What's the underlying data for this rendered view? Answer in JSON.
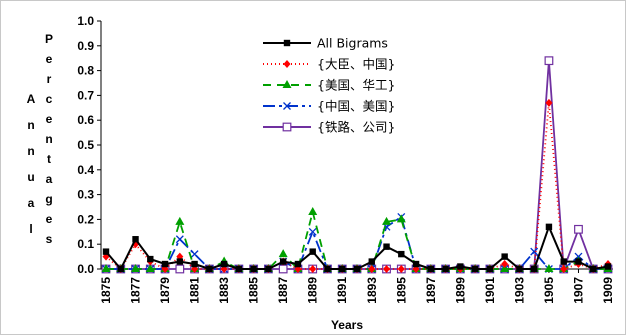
{
  "chart_data": {
    "type": "line",
    "title": "",
    "xlabel": "Years",
    "ylabel_outer": "Annual",
    "ylabel_inner": "Percentages",
    "ylim": [
      0,
      1.0
    ],
    "y_ticks": [
      "0.0",
      "0.1",
      "0.2",
      "0.3",
      "0.4",
      "0.5",
      "0.6",
      "0.7",
      "0.8",
      "0.9",
      "1.0"
    ],
    "x_tick_labels": [
      "1875",
      "1877",
      "1879",
      "1881",
      "1883",
      "1885",
      "1887",
      "1889",
      "1891",
      "1893",
      "1895",
      "1897",
      "1899",
      "1901",
      "1903",
      "1905",
      "1907",
      "1909"
    ],
    "x": [
      1875,
      1876,
      1877,
      1878,
      1879,
      1880,
      1881,
      1882,
      1883,
      1884,
      1885,
      1886,
      1887,
      1888,
      1889,
      1890,
      1891,
      1892,
      1893,
      1894,
      1895,
      1896,
      1897,
      1898,
      1899,
      1900,
      1901,
      1902,
      1903,
      1904,
      1905,
      1906,
      1907,
      1908,
      1909
    ],
    "legend_position": "top-center",
    "grid": false,
    "series": [
      {
        "name": "All Bigrams",
        "color": "#000000",
        "dash": "",
        "marker": "square-filled",
        "values": [
          0.07,
          0.0,
          0.12,
          0.04,
          0.02,
          0.03,
          0.02,
          0.0,
          0.02,
          0.0,
          0.0,
          0.0,
          0.03,
          0.02,
          0.07,
          0.0,
          0.0,
          0.0,
          0.03,
          0.09,
          0.06,
          0.02,
          0.0,
          0.0,
          0.01,
          0.0,
          0.0,
          0.05,
          0.0,
          0.0,
          0.17,
          0.03,
          0.03,
          0.0,
          0.01
        ]
      },
      {
        "name": "{大臣、中国}",
        "color": "#ff0000",
        "dash": "1,3",
        "marker": "diamond-filled",
        "values": [
          0.05,
          0.0,
          0.1,
          0.03,
          0.0,
          0.05,
          0.0,
          0.0,
          0.0,
          0.0,
          0.0,
          0.0,
          0.03,
          0.0,
          0.0,
          0.0,
          0.0,
          0.0,
          0.0,
          0.0,
          0.0,
          0.0,
          0.0,
          0.0,
          0.0,
          0.0,
          0.0,
          0.02,
          0.0,
          0.0,
          0.67,
          0.0,
          0.02,
          0.0,
          0.02
        ]
      },
      {
        "name": "{美国、华工}",
        "color": "#00a000",
        "dash": "8,6",
        "marker": "triangle-filled",
        "values": [
          0.0,
          0.0,
          0.0,
          0.0,
          0.0,
          0.19,
          0.0,
          0.0,
          0.03,
          0.0,
          0.0,
          0.0,
          0.06,
          0.0,
          0.23,
          0.0,
          0.0,
          0.0,
          0.0,
          0.19,
          0.2,
          0.0,
          0.0,
          0.0,
          0.0,
          0.0,
          0.0,
          0.0,
          0.0,
          0.0,
          0.0,
          0.0,
          0.03,
          0.0,
          0.0
        ]
      },
      {
        "name": "{中国、美国}",
        "color": "#0033cc",
        "dash": "12,4,3,4",
        "marker": "x",
        "values": [
          0.0,
          0.0,
          0.0,
          0.0,
          0.0,
          0.12,
          0.06,
          0.0,
          0.0,
          0.0,
          0.0,
          0.0,
          0.03,
          0.0,
          0.15,
          0.0,
          0.0,
          0.0,
          0.0,
          0.17,
          0.21,
          0.0,
          0.0,
          0.0,
          0.0,
          0.0,
          0.0,
          0.0,
          0.0,
          0.07,
          0.0,
          0.0,
          0.05,
          0.0,
          0.0
        ]
      },
      {
        "name": "{铁路、公司}",
        "color": "#7030a0",
        "dash": "",
        "marker": "square-open",
        "values": [
          0.0,
          0.0,
          0.0,
          0.0,
          0.0,
          0.0,
          0.0,
          0.0,
          0.0,
          0.0,
          0.0,
          0.0,
          0.0,
          0.0,
          0.0,
          0.0,
          0.0,
          0.0,
          0.0,
          0.0,
          0.0,
          0.0,
          0.0,
          0.0,
          0.0,
          0.0,
          0.0,
          0.0,
          0.0,
          0.0,
          0.84,
          0.0,
          0.16,
          0.0,
          0.0
        ]
      }
    ]
  }
}
